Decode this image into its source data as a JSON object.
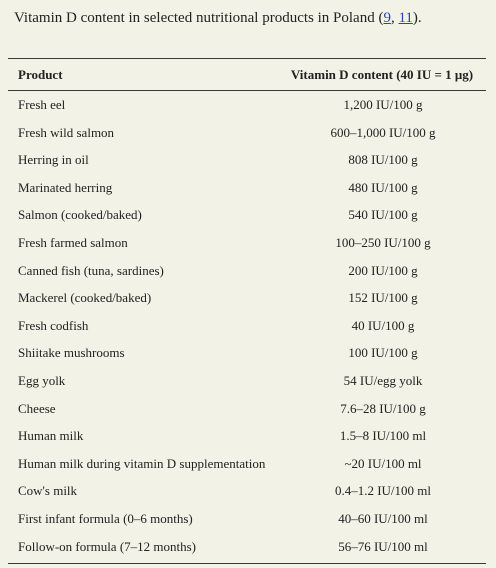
{
  "caption": {
    "text": "Vitamin D content in selected nutritional products in Poland (",
    "ref1": "9",
    "sep": ", ",
    "ref2": "11",
    "end": ")."
  },
  "table": {
    "headers": {
      "product": "Product",
      "content": "Vitamin D content (40 IU = 1 μg)"
    },
    "rows": [
      {
        "product": "Fresh eel",
        "content": "1,200 IU/100 g"
      },
      {
        "product": "Fresh wild salmon",
        "content": "600–1,000 IU/100 g"
      },
      {
        "product": "Herring in oil",
        "content": "808 IU/100 g"
      },
      {
        "product": "Marinated herring",
        "content": "480 IU/100 g"
      },
      {
        "product": "Salmon (cooked/baked)",
        "content": "540 IU/100 g"
      },
      {
        "product": "Fresh farmed salmon",
        "content": "100–250 IU/100 g"
      },
      {
        "product": "Canned fish (tuna, sardines)",
        "content": "200 IU/100 g"
      },
      {
        "product": "Mackerel (cooked/baked)",
        "content": "152 IU/100 g"
      },
      {
        "product": "Fresh codfish",
        "content": "40 IU/100 g"
      },
      {
        "product": "Shiitake mushrooms",
        "content": "100 IU/100 g"
      },
      {
        "product": "Egg yolk",
        "content": "54 IU/egg yolk"
      },
      {
        "product": "Cheese",
        "content": "7.6–28 IU/100 g"
      },
      {
        "product": "Human milk",
        "content": "1.5–8 IU/100 ml"
      },
      {
        "product": "Human milk during vitamin D supplementation",
        "content": "~20 IU/100 ml"
      },
      {
        "product": "Cow's milk",
        "content": "0.4–1.2 IU/100 ml"
      },
      {
        "product": "First infant formula (0–6 months)",
        "content": "40–60 IU/100 ml"
      },
      {
        "product": "Follow-on formula (7–12 months)",
        "content": "56–76 IU/100 ml"
      }
    ]
  },
  "colors": {
    "background": "#f2f2e6",
    "link": "#2c46a8",
    "text": "#222222"
  }
}
